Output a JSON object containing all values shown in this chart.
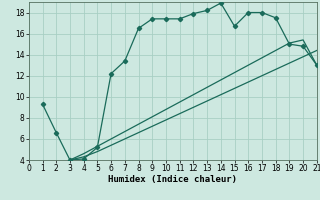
{
  "xlabel": "Humidex (Indice chaleur)",
  "background_color": "#cde8e0",
  "grid_color": "#a8cfc4",
  "line_color": "#1a6b5a",
  "xmin": 0,
  "xmax": 21,
  "ymin": 4,
  "ymax": 19,
  "curve1_x": [
    1,
    2,
    3,
    4,
    5,
    6,
    7,
    8,
    9,
    10,
    11,
    12,
    13,
    14,
    15,
    16,
    17,
    18,
    19,
    20,
    21
  ],
  "curve1_y": [
    9.3,
    6.6,
    4.0,
    4.1,
    5.2,
    12.2,
    13.4,
    16.5,
    17.4,
    17.4,
    17.4,
    17.9,
    18.2,
    18.9,
    16.7,
    18.0,
    18.0,
    17.5,
    15.0,
    14.8,
    13.0
  ],
  "curve2_x": [
    3,
    4,
    5,
    6,
    7,
    8,
    9,
    10,
    11,
    12,
    13,
    14,
    15,
    16,
    17,
    18,
    19,
    20,
    21
  ],
  "curve2_y": [
    4.0,
    4.3,
    4.8,
    5.4,
    6.0,
    6.6,
    7.2,
    7.8,
    8.4,
    9.0,
    9.6,
    10.2,
    10.8,
    11.4,
    12.0,
    12.6,
    13.2,
    13.8,
    14.4
  ],
  "curve3_x": [
    3,
    4,
    5,
    6,
    7,
    8,
    9,
    10,
    11,
    12,
    13,
    14,
    15,
    16,
    17,
    18,
    19,
    20,
    21
  ],
  "curve3_y": [
    4.0,
    4.6,
    5.3,
    6.0,
    6.7,
    7.4,
    8.1,
    8.8,
    9.5,
    10.2,
    10.9,
    11.6,
    12.3,
    13.0,
    13.7,
    14.4,
    15.1,
    15.4,
    13.0
  ],
  "tick_fontsize": 5.5,
  "xlabel_fontsize": 6.5
}
